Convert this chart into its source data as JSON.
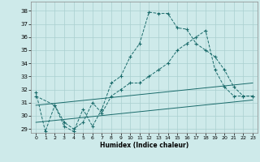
{
  "xlabel": "Humidex (Indice chaleur)",
  "bg_color": "#ceeaea",
  "line_color": "#1a6b6b",
  "grid_color": "#aacfcf",
  "xlim": [
    -0.5,
    23.5
  ],
  "ylim": [
    28.7,
    38.7
  ],
  "yticks": [
    29,
    30,
    31,
    32,
    33,
    34,
    35,
    36,
    37,
    38
  ],
  "xticks": [
    0,
    1,
    2,
    3,
    4,
    5,
    6,
    7,
    8,
    9,
    10,
    11,
    12,
    13,
    14,
    15,
    16,
    17,
    18,
    19,
    20,
    21,
    22,
    23
  ],
  "line1_x": [
    0,
    1,
    2,
    3,
    4,
    5,
    6,
    7,
    8,
    9,
    10,
    11,
    12,
    13,
    14,
    15,
    16,
    17,
    18,
    19,
    20,
    21,
    22,
    23
  ],
  "line1_y": [
    31.8,
    28.8,
    30.8,
    29.2,
    28.8,
    30.5,
    29.2,
    30.5,
    32.5,
    33.0,
    34.5,
    35.5,
    37.9,
    37.8,
    37.8,
    36.7,
    36.6,
    35.5,
    35.0,
    34.5,
    33.5,
    32.2,
    31.5,
    31.5
  ],
  "line2_x": [
    0,
    2,
    3,
    4,
    5,
    6,
    7,
    8,
    9,
    10,
    11,
    12,
    13,
    14,
    15,
    16,
    17,
    18,
    19,
    20,
    21,
    22,
    23
  ],
  "line2_y": [
    31.5,
    30.8,
    29.5,
    29.0,
    29.5,
    31.0,
    30.2,
    31.5,
    32.0,
    32.5,
    32.5,
    33.0,
    33.5,
    34.0,
    35.0,
    35.5,
    36.0,
    36.5,
    33.5,
    32.2,
    31.5,
    31.5,
    31.5
  ],
  "line3_x": [
    0,
    23
  ],
  "line3_y": [
    30.8,
    32.5
  ],
  "line4_x": [
    0,
    23
  ],
  "line4_y": [
    29.5,
    31.2
  ]
}
